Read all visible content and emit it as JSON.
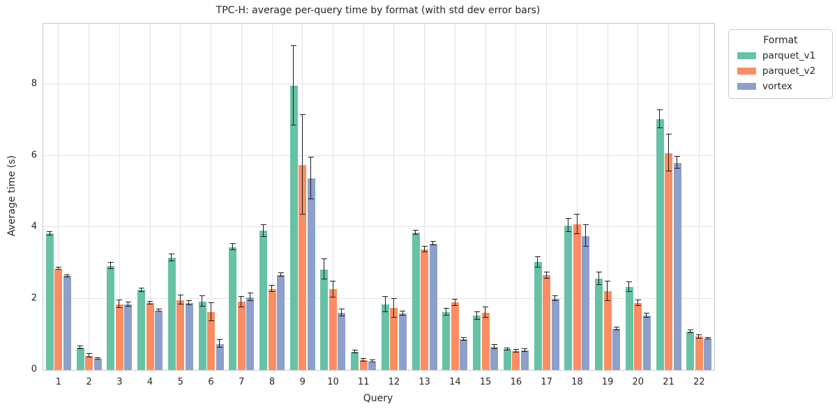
{
  "title": "TPC-H: average per-query time by format (with std dev error bars)",
  "axes": {
    "xlabel": "Query",
    "ylabel": "Average time (s)",
    "ytick_labels": [
      "0",
      "2",
      "4",
      "6",
      "8"
    ]
  },
  "legend": {
    "title": "Format",
    "entries": [
      {
        "label": "parquet_v1",
        "color": "#66c2a5"
      },
      {
        "label": "parquet_v2",
        "color": "#fc8d62"
      },
      {
        "label": "vortex",
        "color": "#8da0cb"
      }
    ]
  },
  "chart_data": {
    "type": "bar",
    "title": "TPC-H: average per-query time by format (with std dev error bars)",
    "xlabel": "Query",
    "ylabel": "Average time (s)",
    "categories": [
      "1",
      "2",
      "3",
      "4",
      "5",
      "6",
      "7",
      "8",
      "9",
      "10",
      "11",
      "12",
      "13",
      "14",
      "15",
      "16",
      "17",
      "18",
      "19",
      "20",
      "21",
      "22"
    ],
    "series": [
      {
        "name": "parquet_v1",
        "color": "#66c2a5",
        "values": [
          3.82,
          0.62,
          2.92,
          2.24,
          3.15,
          1.92,
          3.44,
          3.9,
          7.97,
          2.82,
          0.5,
          1.84,
          3.84,
          1.62,
          1.52,
          0.58,
          3.02,
          4.05,
          2.56,
          2.32,
          7.03,
          1.08
        ],
        "std": [
          0.05,
          0.04,
          0.09,
          0.05,
          0.1,
          0.15,
          0.09,
          0.17,
          1.12,
          0.28,
          0.04,
          0.21,
          0.06,
          0.09,
          0.11,
          0.03,
          0.14,
          0.18,
          0.17,
          0.14,
          0.26,
          0.04
        ]
      },
      {
        "name": "parquet_v2",
        "color": "#fc8d62",
        "values": [
          2.84,
          0.4,
          1.84,
          1.88,
          1.96,
          1.62,
          1.91,
          2.27,
          5.75,
          2.26,
          0.27,
          1.73,
          3.38,
          1.89,
          1.61,
          0.52,
          2.65,
          4.08,
          2.21,
          1.87,
          6.08,
          0.93
        ],
        "std": [
          0.03,
          0.04,
          0.11,
          0.04,
          0.13,
          0.26,
          0.15,
          0.09,
          1.39,
          0.22,
          0.04,
          0.26,
          0.08,
          0.09,
          0.14,
          0.04,
          0.09,
          0.28,
          0.28,
          0.08,
          0.52,
          0.05
        ]
      },
      {
        "name": "vortex",
        "color": "#8da0cb",
        "values": [
          2.63,
          0.31,
          1.84,
          1.67,
          1.88,
          0.73,
          2.04,
          2.66,
          5.37,
          1.6,
          0.24,
          1.58,
          3.54,
          0.86,
          0.64,
          0.54,
          2.0,
          3.76,
          1.16,
          1.52,
          5.81,
          0.87
        ],
        "std": [
          0.03,
          0.02,
          0.06,
          0.03,
          0.06,
          0.11,
          0.1,
          0.05,
          0.58,
          0.1,
          0.03,
          0.06,
          0.05,
          0.04,
          0.06,
          0.04,
          0.07,
          0.3,
          0.04,
          0.06,
          0.17,
          0.02
        ]
      }
    ],
    "yticks": [
      0,
      2,
      4,
      6,
      8
    ],
    "ylim": [
      0,
      9.707
    ],
    "grid": true,
    "error_bars": "std dev, black with caps",
    "legend_title": "Format",
    "legend_position": "outside upper right"
  }
}
